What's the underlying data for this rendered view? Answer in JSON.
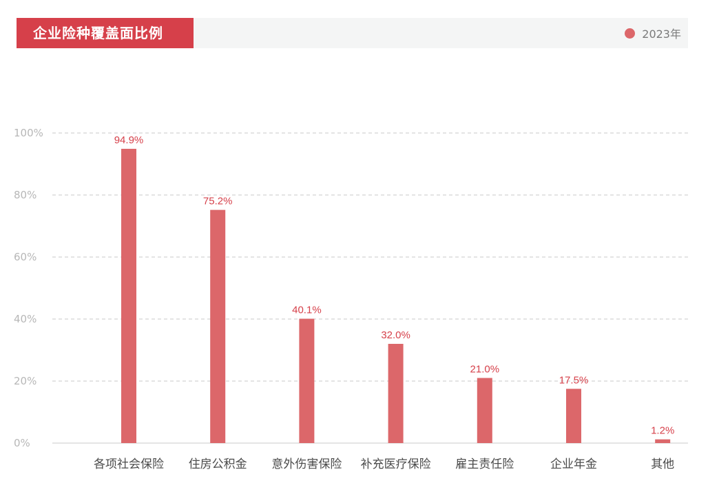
{
  "header": {
    "title": "企业险种覆盖面比例"
  },
  "legend": {
    "label": "2023年",
    "color": "#dc676a"
  },
  "colors": {
    "bar": "#dc676a",
    "value_label": "#d6404a",
    "title_bg": "#d6404a"
  },
  "chart_data": {
    "type": "bar",
    "title": "企业险种覆盖面比例",
    "categories": [
      "各项社会保险",
      "住房公积金",
      "意外伤害保险",
      "补充医疗保险",
      "雇主责任险",
      "企业年金",
      "其他"
    ],
    "series": [
      {
        "name": "2023年",
        "values": [
          94.9,
          75.2,
          40.1,
          32.0,
          21.0,
          17.5,
          1.2
        ]
      }
    ],
    "value_labels": [
      "94.9%",
      "75.2%",
      "40.1%",
      "32.0%",
      "21.0%",
      "17.5%",
      "1.2%"
    ],
    "y_ticks": [
      "0%",
      "20%",
      "40%",
      "60%",
      "80%",
      "100%"
    ],
    "ylim": [
      0,
      100
    ],
    "xlabel": "",
    "ylabel": "",
    "grid": true,
    "legend_position": "top-right"
  }
}
